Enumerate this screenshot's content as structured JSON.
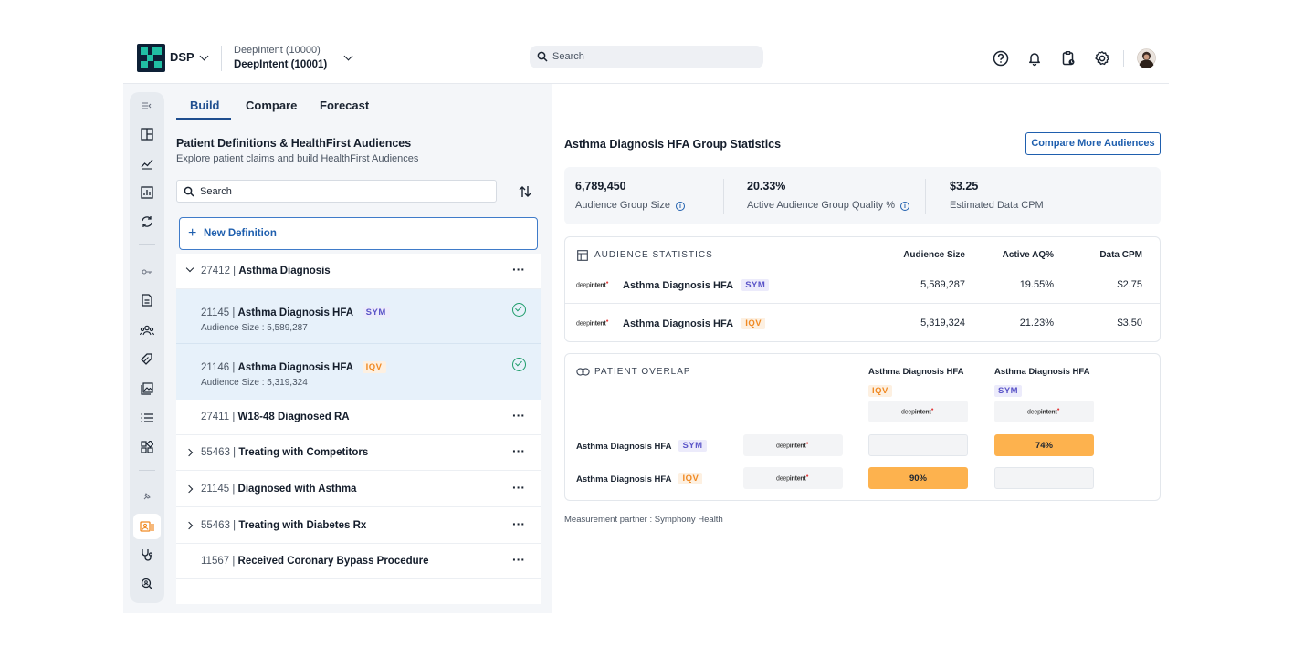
{
  "header": {
    "brand": "DSP",
    "account_primary": "DeepIntent (10000)",
    "account_secondary": "DeepIntent (10001)",
    "search_placeholder": "Search",
    "icons": [
      "help-icon",
      "bell-icon",
      "clipboard-icon",
      "gear-icon",
      "avatar"
    ]
  },
  "tabs": [
    {
      "label": "Build",
      "active": true
    },
    {
      "label": "Compare",
      "active": false
    },
    {
      "label": "Forecast",
      "active": false
    }
  ],
  "left": {
    "title": "Patient Definitions & HealthFirst Audiences",
    "subtitle": "Explore patient claims and build HealthFirst Audiences",
    "search_placeholder": "Search",
    "new_definition": "New Definition",
    "definitions": [
      {
        "id": "27412",
        "name": "Asthma Diagnosis",
        "expanded": true
      },
      {
        "id": "27411",
        "name": "W18-48 Diagnosed RA",
        "expanded": false
      },
      {
        "id": "55463",
        "name": "Treating with Competitors",
        "expanded": false
      },
      {
        "id": "21145",
        "name": "Diagnosed with Asthma",
        "expanded": false
      },
      {
        "id": "55463",
        "name": "Treating with Diabetes Rx",
        "expanded": false
      },
      {
        "id": "11567",
        "name": "Received Coronary Bypass Procedure",
        "expanded": false
      }
    ],
    "audiences": [
      {
        "id": "21145",
        "name": "Asthma Diagnosis HFA",
        "badge": "SYM",
        "size_label": "Audience Size : 5,589,287"
      },
      {
        "id": "21146",
        "name": "Asthma Diagnosis HFA",
        "badge": "IQV",
        "size_label": "Audience Size : 5,319,324"
      }
    ],
    "separator": " | "
  },
  "right": {
    "title": "Asthma Diagnosis HFA Group Statistics",
    "compare_button": "Compare More Audiences",
    "kpis": [
      {
        "value": "6,789,450",
        "label": "Audience Group Size"
      },
      {
        "value": "20.33%",
        "label": "Active Audience Group Quality %"
      },
      {
        "value": "$3.25",
        "label": "Estimated Data CPM"
      }
    ],
    "stats": {
      "title": "AUDIENCE STATISTICS",
      "columns": [
        "Audience Size",
        "Active AQ%",
        "Data CPM"
      ],
      "rows": [
        {
          "partner_logo": "deepintent",
          "name": "Asthma Diagnosis HFA",
          "badge": "SYM",
          "size": "5,589,287",
          "aq": "19.55%",
          "cpm": "$2.75"
        },
        {
          "partner_logo": "deepintent",
          "name": "Asthma Diagnosis HFA",
          "badge": "IQV",
          "size": "5,319,324",
          "aq": "21.23%",
          "cpm": "$3.50"
        }
      ]
    },
    "overlap": {
      "title": "PATIENT OVERLAP",
      "columns": [
        {
          "name": "Asthma Diagnosis HFA",
          "badge": "IQV"
        },
        {
          "name": "Asthma Diagnosis HFA",
          "badge": "SYM"
        }
      ],
      "rows": [
        {
          "name": "Asthma Diagnosis HFA",
          "badge": "SYM",
          "values": [
            "",
            "74%"
          ]
        },
        {
          "name": "Asthma Diagnosis HFA",
          "badge": "IQV",
          "values": [
            "90%",
            ""
          ]
        }
      ],
      "logo_text": "deepintent"
    },
    "footnote": "Measurement partner : Symphony Health"
  },
  "colors": {
    "brand_navy": "#0d2036",
    "brand_teal": "#21c0a4",
    "accent_blue": "#1f5fae",
    "sym_badge": "#5b55c8",
    "iqv_badge": "#f08a24",
    "overlap_fill": "#fdb24e",
    "check_green": "#1f9d6b"
  }
}
